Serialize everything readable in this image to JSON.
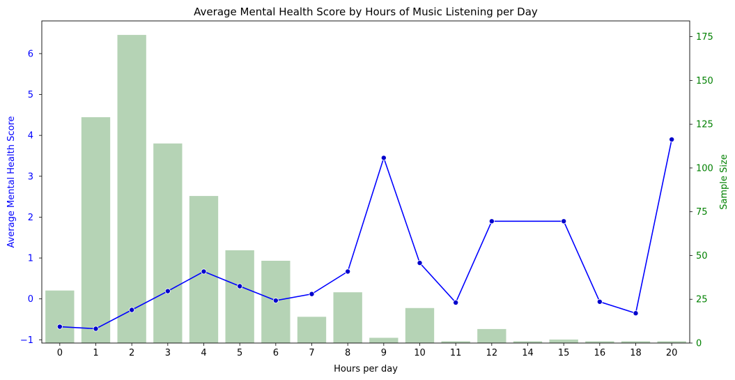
{
  "chart_data": {
    "type": "bar",
    "title": "Average Mental Health Score by Hours of Music Listening per Day",
    "xlabel": "Hours per day",
    "ylabel_left": "Average Mental Health Score",
    "ylabel_right": "Sample Size",
    "categories": [
      "0",
      "1",
      "2",
      "3",
      "4",
      "5",
      "6",
      "7",
      "8",
      "9",
      "10",
      "11",
      "12",
      "14",
      "15",
      "16",
      "18",
      "20"
    ],
    "series": [
      {
        "type": "line",
        "axis": "left",
        "color": "#0000ff",
        "values": [
          -0.68,
          -0.73,
          -0.27,
          0.19,
          0.67,
          0.31,
          -0.04,
          0.12,
          0.67,
          3.45,
          0.88,
          -0.09,
          1.9,
          null,
          1.9,
          -0.07,
          -0.35,
          3.9
        ]
      },
      {
        "type": "bar",
        "axis": "right",
        "color": "#b5d3b5",
        "values": [
          30,
          129,
          176,
          114,
          84,
          53,
          47,
          15,
          29,
          3,
          20,
          1,
          8,
          1,
          2,
          1,
          1,
          1
        ]
      }
    ],
    "left_axis": {
      "ylim": [
        -1.08,
        6.8
      ],
      "ticks": [
        -1,
        0,
        1,
        2,
        3,
        4,
        5,
        6
      ],
      "color": "#0000ff"
    },
    "right_axis": {
      "ylim": [
        0,
        184
      ],
      "ticks": [
        0,
        25,
        50,
        75,
        100,
        125,
        150,
        175
      ],
      "color": "#008000"
    },
    "grid": false
  }
}
